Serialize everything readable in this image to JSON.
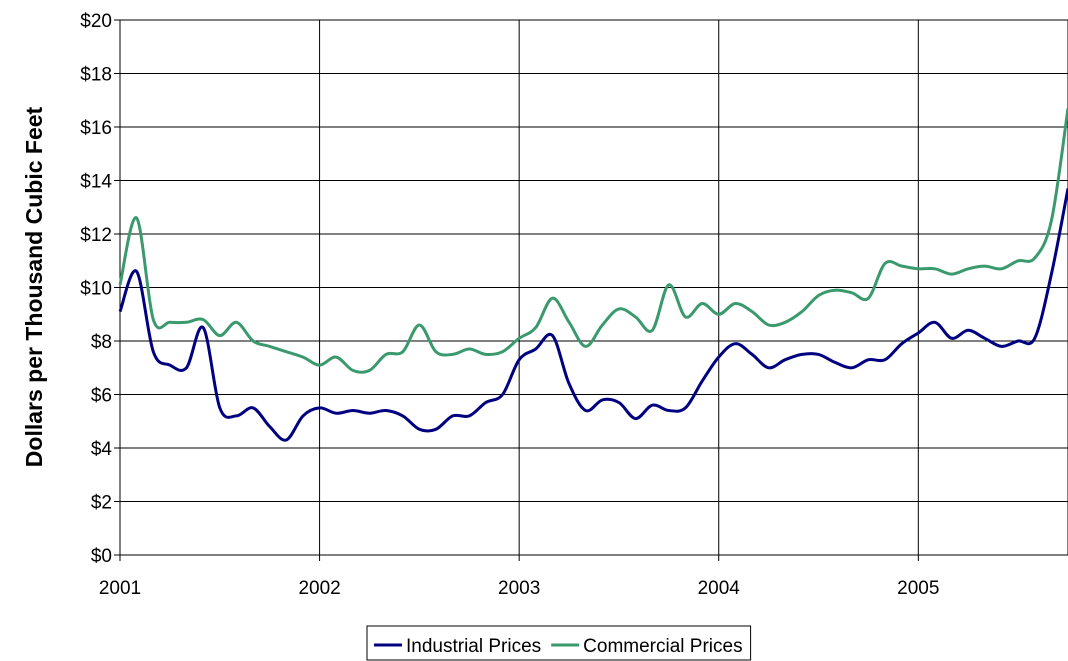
{
  "chart_data": {
    "type": "line",
    "title": "",
    "xlabel": "",
    "ylabel": "Dollars per Thousand Cubic Feet",
    "xlim": [
      2001,
      2005.75
    ],
    "ylim": [
      0,
      20
    ],
    "x_ticks": [
      "2001",
      "2002",
      "2003",
      "2004",
      "2005"
    ],
    "y_ticks": [
      "$0",
      "$2",
      "$4",
      "$6",
      "$8",
      "$10",
      "$12",
      "$14",
      "$16",
      "$18",
      "$20"
    ],
    "grid": true,
    "legend": "bottom-center",
    "x": [
      2001.0,
      2001.083,
      2001.167,
      2001.25,
      2001.333,
      2001.417,
      2001.5,
      2001.583,
      2001.667,
      2001.75,
      2001.833,
      2001.917,
      2002.0,
      2002.083,
      2002.167,
      2002.25,
      2002.333,
      2002.417,
      2002.5,
      2002.583,
      2002.667,
      2002.75,
      2002.833,
      2002.917,
      2003.0,
      2003.083,
      2003.167,
      2003.25,
      2003.333,
      2003.417,
      2003.5,
      2003.583,
      2003.667,
      2003.75,
      2003.833,
      2003.917,
      2004.0,
      2004.083,
      2004.167,
      2004.25,
      2004.333,
      2004.417,
      2004.5,
      2004.583,
      2004.667,
      2004.75,
      2004.833,
      2004.917,
      2005.0,
      2005.083,
      2005.167,
      2005.25,
      2005.333,
      2005.417,
      2005.5,
      2005.583,
      2005.667,
      2005.75
    ],
    "series": [
      {
        "name": "Industrial Prices",
        "color": "#000080",
        "values": [
          9.1,
          10.6,
          7.6,
          7.1,
          7.0,
          8.5,
          5.5,
          5.2,
          5.5,
          4.8,
          4.3,
          5.2,
          5.5,
          5.3,
          5.4,
          5.3,
          5.4,
          5.2,
          4.7,
          4.7,
          5.2,
          5.2,
          5.7,
          6.0,
          7.3,
          7.7,
          8.2,
          6.4,
          5.4,
          5.8,
          5.7,
          5.1,
          5.6,
          5.4,
          5.5,
          6.5,
          7.4,
          7.9,
          7.5,
          7.0,
          7.3,
          7.5,
          7.5,
          7.2,
          7.0,
          7.3,
          7.3,
          7.9,
          8.3,
          8.7,
          8.1,
          8.4,
          8.1,
          7.8,
          8.0,
          8.1,
          10.5,
          13.7
        ]
      },
      {
        "name": "Commercial Prices",
        "color": "#3a9a6e",
        "values": [
          10.1,
          12.6,
          8.8,
          8.7,
          8.7,
          8.8,
          8.2,
          8.7,
          8.0,
          7.8,
          7.6,
          7.4,
          7.1,
          7.4,
          6.9,
          6.9,
          7.5,
          7.6,
          8.6,
          7.6,
          7.5,
          7.7,
          7.5,
          7.6,
          8.1,
          8.5,
          9.6,
          8.7,
          7.8,
          8.6,
          9.2,
          8.9,
          8.4,
          10.1,
          8.9,
          9.4,
          9.0,
          9.4,
          9.1,
          8.6,
          8.7,
          9.1,
          9.7,
          9.9,
          9.8,
          9.6,
          10.9,
          10.8,
          10.7,
          10.7,
          10.5,
          10.7,
          10.8,
          10.7,
          11.0,
          11.1,
          12.5,
          16.7
        ]
      }
    ]
  }
}
